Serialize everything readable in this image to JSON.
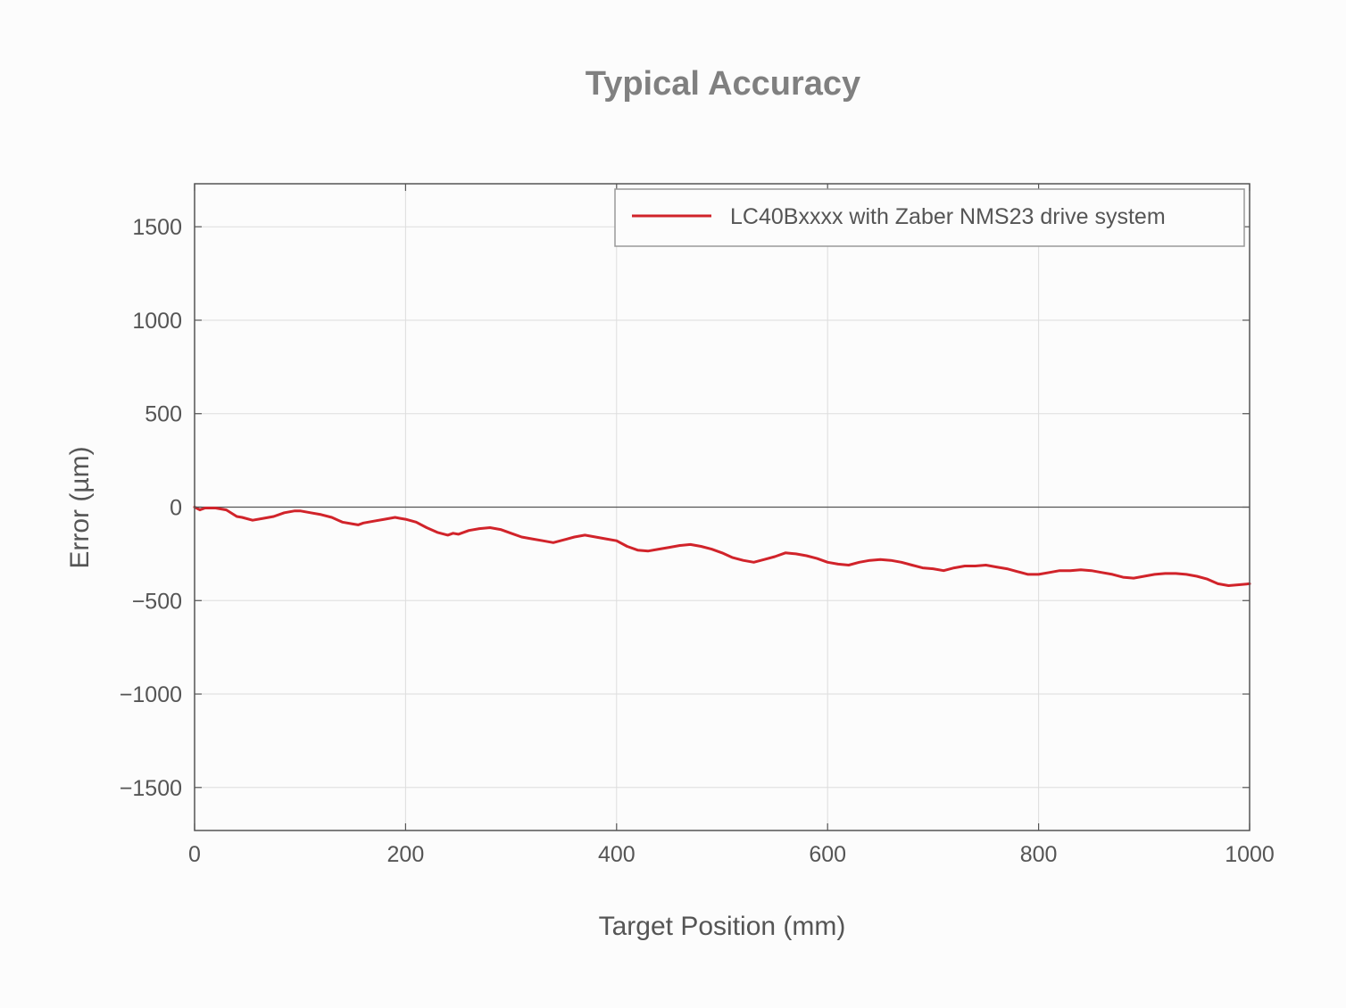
{
  "chart_data": {
    "type": "line",
    "title": "Typical Accuracy",
    "xlabel": "Target Position (mm)",
    "ylabel": "Error (µm)",
    "xlim": [
      0,
      1000
    ],
    "ylim": [
      -1730,
      1730
    ],
    "xticks": [
      0,
      200,
      400,
      600,
      800,
      1000
    ],
    "xtick_labels": [
      "0",
      "200",
      "400",
      "600",
      "800",
      "1000"
    ],
    "yticks": [
      1500,
      1000,
      500,
      0,
      -500,
      -1000,
      -1500
    ],
    "ytick_labels": [
      "1500",
      "1000",
      "500",
      "0",
      "−500",
      "−1000",
      "−1500"
    ],
    "grid": true,
    "zero_line": true,
    "legend_position": "top-right",
    "colors": {
      "series": "#d1232a",
      "axes": "#555555",
      "grid": "#dddddd",
      "title": "#808080"
    },
    "series": [
      {
        "name": "LC40Bxxxx with Zaber NMS23 drive system",
        "x": [
          0,
          5,
          10,
          20,
          30,
          40,
          45,
          55,
          65,
          75,
          85,
          95,
          100,
          110,
          120,
          130,
          140,
          150,
          155,
          160,
          170,
          180,
          190,
          195,
          200,
          210,
          220,
          230,
          240,
          245,
          250,
          260,
          270,
          280,
          290,
          300,
          310,
          320,
          330,
          340,
          350,
          360,
          370,
          380,
          390,
          400,
          410,
          420,
          430,
          440,
          450,
          460,
          470,
          480,
          490,
          500,
          510,
          520,
          530,
          540,
          550,
          560,
          570,
          580,
          590,
          600,
          610,
          620,
          630,
          640,
          650,
          660,
          670,
          680,
          690,
          700,
          710,
          720,
          730,
          740,
          750,
          760,
          770,
          780,
          790,
          800,
          810,
          820,
          830,
          840,
          850,
          860,
          870,
          880,
          890,
          900,
          910,
          920,
          930,
          940,
          950,
          960,
          970,
          980,
          990,
          1000
        ],
        "y": [
          0,
          -15,
          -5,
          -5,
          -15,
          -50,
          -55,
          -70,
          -60,
          -50,
          -30,
          -20,
          -20,
          -30,
          -40,
          -55,
          -80,
          -90,
          -95,
          -85,
          -75,
          -65,
          -55,
          -60,
          -65,
          -80,
          -110,
          -135,
          -150,
          -140,
          -145,
          -125,
          -115,
          -110,
          -120,
          -140,
          -160,
          -170,
          -180,
          -190,
          -175,
          -160,
          -150,
          -160,
          -170,
          -180,
          -210,
          -230,
          -235,
          -225,
          -215,
          -205,
          -200,
          -210,
          -225,
          -245,
          -270,
          -285,
          -295,
          -280,
          -265,
          -245,
          -250,
          -260,
          -275,
          -295,
          -305,
          -310,
          -295,
          -285,
          -280,
          -285,
          -295,
          -310,
          -325,
          -330,
          -340,
          -325,
          -315,
          -315,
          -310,
          -320,
          -330,
          -345,
          -360,
          -360,
          -350,
          -340,
          -340,
          -335,
          -340,
          -350,
          -360,
          -375,
          -380,
          -370,
          -360,
          -355,
          -355,
          -360,
          -370,
          -385,
          -410,
          -420,
          -415,
          -410
        ]
      }
    ]
  }
}
